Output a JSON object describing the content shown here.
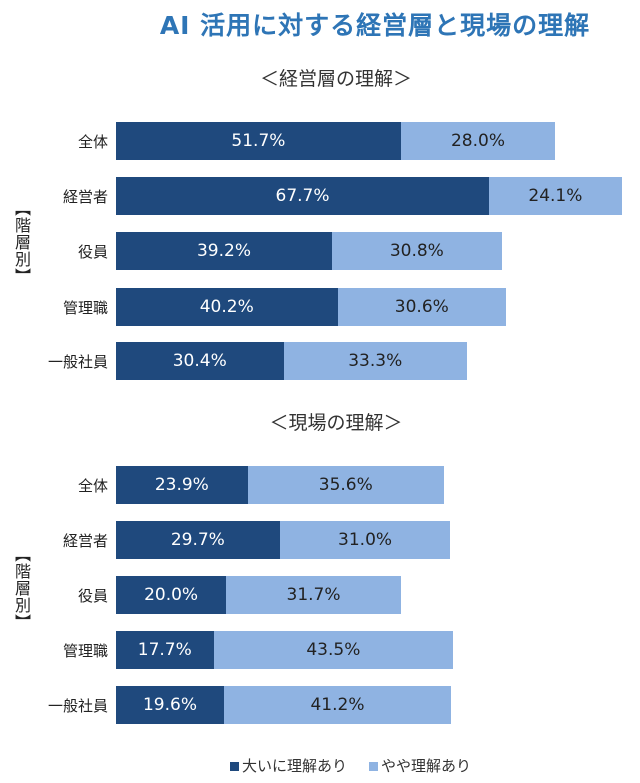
{
  "chart_data": [
    {
      "type": "bar",
      "stacked": true,
      "orientation": "horizontal",
      "title": "AI 活用に対する経営層と現場の理解",
      "subtitle": "＜経営層の理解＞",
      "group_label": "【階層別】",
      "categories": [
        "全体",
        "経営者",
        "役員",
        "管理職",
        "一般社員"
      ],
      "series": [
        {
          "name": "大いに理解あり",
          "color": "#1f497d",
          "values": [
            51.7,
            67.7,
            39.2,
            40.2,
            30.4
          ],
          "labels": [
            "51.7%",
            "67.7%",
            "39.2%",
            "40.2%",
            "30.4%"
          ]
        },
        {
          "name": "やや理解あり",
          "color": "#8fb3e2",
          "values": [
            28.0,
            24.1,
            30.8,
            30.6,
            33.3
          ],
          "labels": [
            "28.0%",
            "24.1%",
            "30.8%",
            "30.6%",
            "33.3%"
          ]
        }
      ],
      "xlim": [
        0,
        100
      ]
    },
    {
      "type": "bar",
      "stacked": true,
      "orientation": "horizontal",
      "subtitle": "＜現場の理解＞",
      "group_label": "【階層別】",
      "categories": [
        "全体",
        "経営者",
        "役員",
        "管理職",
        "一般社員"
      ],
      "series": [
        {
          "name": "大いに理解あり",
          "color": "#1f497d",
          "values": [
            23.9,
            29.7,
            20.0,
            17.7,
            19.6
          ],
          "labels": [
            "23.9%",
            "29.7%",
            "20.0%",
            "17.7%",
            "19.6%"
          ]
        },
        {
          "name": "やや理解あり",
          "color": "#8fb3e2",
          "values": [
            35.6,
            31.0,
            31.7,
            43.5,
            41.2
          ],
          "labels": [
            "35.6%",
            "31.0%",
            "31.7%",
            "43.5%",
            "41.2%"
          ]
        }
      ],
      "xlim": [
        0,
        100
      ]
    }
  ],
  "legend": [
    "大いに理解あり",
    "やや理解あり"
  ]
}
